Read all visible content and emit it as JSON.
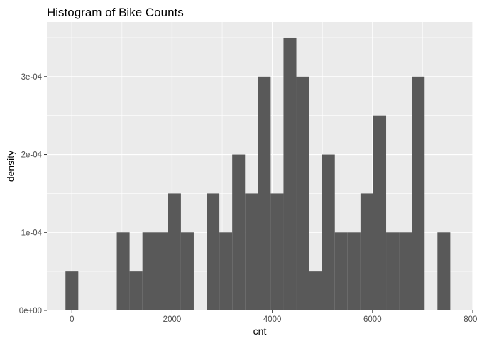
{
  "chart_data": {
    "type": "bar",
    "title": "Histogram of Bike Counts",
    "xlabel": "cnt",
    "ylabel": "density",
    "xlim": [
      -500,
      8000
    ],
    "ylim": [
      0,
      0.00037
    ],
    "x_ticks": [
      0,
      2000,
      4000,
      6000,
      8000
    ],
    "x_tick_labels": [
      "0",
      "2000",
      "4000",
      "6000",
      "8000"
    ],
    "y_ticks": [
      0,
      0.0001,
      0.0002,
      0.0003
    ],
    "y_tick_labels": [
      "0e+00",
      "1e-04",
      "2e-04",
      "3e-04"
    ],
    "grid": true,
    "bar_color": "#595959",
    "panel_background": "#ebebeb",
    "grid_color": "#ffffff",
    "bins": [
      {
        "x0": -128,
        "x1": 128,
        "density": 5e-05
      },
      {
        "x0": 128,
        "x1": 384,
        "density": 0
      },
      {
        "x0": 384,
        "x1": 640,
        "density": 0
      },
      {
        "x0": 640,
        "x1": 896,
        "density": 0
      },
      {
        "x0": 896,
        "x1": 1152,
        "density": 0.0001
      },
      {
        "x0": 1152,
        "x1": 1408,
        "density": 5e-05
      },
      {
        "x0": 1408,
        "x1": 1664,
        "density": 0.0001
      },
      {
        "x0": 1664,
        "x1": 1920,
        "density": 0.0001
      },
      {
        "x0": 1920,
        "x1": 2176,
        "density": 0.00015
      },
      {
        "x0": 2176,
        "x1": 2432,
        "density": 0.0001
      },
      {
        "x0": 2432,
        "x1": 2688,
        "density": 0
      },
      {
        "x0": 2688,
        "x1": 2944,
        "density": 0.00015
      },
      {
        "x0": 2944,
        "x1": 3200,
        "density": 0.0001
      },
      {
        "x0": 3200,
        "x1": 3456,
        "density": 0.0002
      },
      {
        "x0": 3456,
        "x1": 3712,
        "density": 0.00015
      },
      {
        "x0": 3712,
        "x1": 3968,
        "density": 0.0003
      },
      {
        "x0": 3968,
        "x1": 4224,
        "density": 0.00015
      },
      {
        "x0": 4224,
        "x1": 4480,
        "density": 0.00035
      },
      {
        "x0": 4480,
        "x1": 4736,
        "density": 0.0003
      },
      {
        "x0": 4736,
        "x1": 4992,
        "density": 5e-05
      },
      {
        "x0": 4992,
        "x1": 5248,
        "density": 0.0002
      },
      {
        "x0": 5248,
        "x1": 5504,
        "density": 0.0001
      },
      {
        "x0": 5504,
        "x1": 5760,
        "density": 0.0001
      },
      {
        "x0": 5760,
        "x1": 6016,
        "density": 0.00015
      },
      {
        "x0": 6016,
        "x1": 6272,
        "density": 0.00025
      },
      {
        "x0": 6272,
        "x1": 6528,
        "density": 0.0001
      },
      {
        "x0": 6528,
        "x1": 6784,
        "density": 0.0001
      },
      {
        "x0": 6784,
        "x1": 7040,
        "density": 0.0003
      },
      {
        "x0": 7040,
        "x1": 7296,
        "density": 0
      },
      {
        "x0": 7296,
        "x1": 7552,
        "density": 0.0001
      }
    ]
  }
}
